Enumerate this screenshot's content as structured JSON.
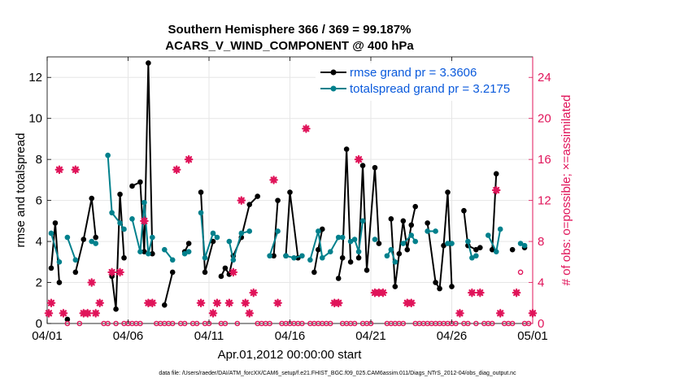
{
  "chart_data": {
    "type": "line",
    "title": [
      "Southern Hemisphere 366 / 369 = 99.187%",
      "ACARS_V_WIND_COMPONENT @ 400 hPa"
    ],
    "xlabel": "Apr.01,2012 00:00:00 start",
    "ylabel_left": "rmse and totalspread",
    "ylabel_right": "# of obs: o=possible; ×=assimilated",
    "footer": "data file: /Users/raeder/DAI/ATM_forcXX/CAM6_setup/f.e21.FHIST_BGC.f09_025.CAM6assim.011/Diags_NTrS_2012-04/obs_diag_output.nc",
    "xlim": [
      0,
      30
    ],
    "ylim_left": [
      0,
      13
    ],
    "ylim_right": [
      0,
      26
    ],
    "x_tick_values": [
      0,
      5,
      10,
      15,
      20,
      25,
      30
    ],
    "x_tick_labels": [
      "04/01",
      "04/06",
      "04/11",
      "04/16",
      "04/21",
      "04/26",
      "05/01"
    ],
    "y_left_ticks": [
      "0",
      "2",
      "4",
      "6",
      "8",
      "10",
      "12"
    ],
    "y_right_ticks": [
      "0",
      "4",
      "8",
      "12",
      "16",
      "20",
      "24"
    ],
    "colors": {
      "rmse": "#000000",
      "spread": "#00808c",
      "obs": "#e0145a",
      "legend_text": "#0a5adc",
      "grid": "#e6e6e6"
    },
    "series": [
      {
        "name": "rmse grand pr = 3.3606",
        "color": "#000000",
        "points": [
          [
            0.25,
            2.7
          ],
          [
            0.5,
            4.9
          ],
          [
            0.75,
            2.0
          ],
          [
            1.0,
            null
          ],
          [
            1.25,
            0.2
          ],
          [
            1.5,
            null
          ],
          [
            1.75,
            2.5
          ],
          [
            2.25,
            4.1
          ],
          [
            2.75,
            6.1
          ],
          [
            3.0,
            4.2
          ],
          [
            3.5,
            null
          ],
          [
            4.0,
            2.3
          ],
          [
            4.25,
            0.7
          ],
          [
            4.5,
            6.3
          ],
          [
            4.75,
            3.2
          ],
          [
            5.0,
            null
          ],
          [
            5.25,
            6.7
          ],
          [
            5.75,
            6.9
          ],
          [
            6.0,
            3.5
          ],
          [
            6.25,
            12.7
          ],
          [
            6.5,
            3.4
          ],
          [
            7.0,
            null
          ],
          [
            7.25,
            0.9
          ],
          [
            7.75,
            2.5
          ],
          [
            8.0,
            null
          ],
          [
            8.5,
            3.5
          ],
          [
            8.75,
            3.9
          ],
          [
            9.0,
            null
          ],
          [
            9.5,
            6.4
          ],
          [
            9.75,
            2.5
          ],
          [
            10.25,
            4.0
          ],
          [
            10.5,
            null
          ],
          [
            10.75,
            2.3
          ],
          [
            11.0,
            2.7
          ],
          [
            11.25,
            2.4
          ],
          [
            11.5,
            3.3
          ],
          [
            12.0,
            4.2
          ],
          [
            12.5,
            5.8
          ],
          [
            13.0,
            6.2
          ],
          [
            13.5,
            null
          ],
          [
            14.0,
            3.3
          ],
          [
            14.25,
            6.0
          ],
          [
            14.5,
            null
          ],
          [
            14.75,
            3.3
          ],
          [
            15.0,
            6.4
          ],
          [
            15.5,
            3.2
          ],
          [
            16.0,
            null
          ],
          [
            16.5,
            2.5
          ],
          [
            16.75,
            3.6
          ],
          [
            17.0,
            4.6
          ],
          [
            17.5,
            null
          ],
          [
            18.0,
            2.2
          ],
          [
            18.25,
            3.2
          ],
          [
            18.5,
            8.5
          ],
          [
            18.75,
            3.0
          ],
          [
            19.0,
            null
          ],
          [
            19.25,
            3.2
          ],
          [
            19.5,
            7.7
          ],
          [
            19.75,
            2.6
          ],
          [
            20.25,
            7.6
          ],
          [
            20.5,
            3.9
          ],
          [
            20.75,
            null
          ],
          [
            21.25,
            5.1
          ],
          [
            21.5,
            1.8
          ],
          [
            21.75,
            3.4
          ],
          [
            22.0,
            5.0
          ],
          [
            22.25,
            3.6
          ],
          [
            22.5,
            4.8
          ],
          [
            22.75,
            5.7
          ],
          [
            23.0,
            null
          ],
          [
            23.5,
            4.9
          ],
          [
            24.0,
            2.0
          ],
          [
            24.25,
            1.7
          ],
          [
            24.5,
            3.8
          ],
          [
            24.75,
            6.4
          ],
          [
            25.0,
            1.8
          ],
          [
            25.25,
            null
          ],
          [
            25.75,
            5.5
          ],
          [
            26.0,
            3.8
          ],
          [
            26.5,
            3.6
          ],
          [
            26.75,
            3.7
          ],
          [
            27.0,
            null
          ],
          [
            27.5,
            3.6
          ],
          [
            27.75,
            7.3
          ],
          [
            28.0,
            null
          ],
          [
            28.75,
            3.6
          ],
          [
            29.0,
            null
          ],
          [
            29.5,
            3.7
          ]
        ]
      },
      {
        "name": "totalspread grand pr = 3.2175",
        "color": "#00808c",
        "points": [
          [
            0.25,
            4.4
          ],
          [
            0.75,
            3.0
          ],
          [
            1.0,
            null
          ],
          [
            1.25,
            4.2
          ],
          [
            1.75,
            3.1
          ],
          [
            2.25,
            null
          ],
          [
            2.75,
            4.0
          ],
          [
            3.0,
            3.9
          ],
          [
            3.5,
            null
          ],
          [
            3.75,
            8.2
          ],
          [
            4.0,
            5.4
          ],
          [
            4.5,
            4.9
          ],
          [
            4.75,
            4.6
          ],
          [
            5.0,
            null
          ],
          [
            5.25,
            5.1
          ],
          [
            5.75,
            3.5
          ],
          [
            6.0,
            5.9
          ],
          [
            6.25,
            3.4
          ],
          [
            6.5,
            4.2
          ],
          [
            7.0,
            null
          ],
          [
            7.25,
            3.6
          ],
          [
            7.75,
            3.1
          ],
          [
            8.0,
            null
          ],
          [
            8.5,
            3.4
          ],
          [
            8.75,
            3.5
          ],
          [
            9.0,
            null
          ],
          [
            9.5,
            5.4
          ],
          [
            9.75,
            3.2
          ],
          [
            10.25,
            4.4
          ],
          [
            10.5,
            4.2
          ],
          [
            11.0,
            null
          ],
          [
            11.25,
            4.0
          ],
          [
            11.5,
            3.1
          ],
          [
            12.0,
            4.4
          ],
          [
            12.5,
            4.5
          ],
          [
            12.75,
            null
          ],
          [
            13.75,
            3.3
          ],
          [
            14.25,
            4.5
          ],
          [
            14.5,
            null
          ],
          [
            14.75,
            3.3
          ],
          [
            15.25,
            3.2
          ],
          [
            15.75,
            3.3
          ],
          [
            16.0,
            null
          ],
          [
            16.25,
            3.1
          ],
          [
            16.75,
            4.5
          ],
          [
            17.0,
            3.2
          ],
          [
            17.5,
            3.5
          ],
          [
            18.0,
            4.2
          ],
          [
            18.25,
            4.2
          ],
          [
            18.5,
            null
          ],
          [
            18.75,
            4.0
          ],
          [
            19.0,
            4.1
          ],
          [
            19.25,
            3.5
          ],
          [
            19.5,
            5.0
          ],
          [
            19.75,
            null
          ],
          [
            20.25,
            4.1
          ],
          [
            20.5,
            null
          ],
          [
            21.0,
            3.3
          ],
          [
            21.25,
            3.6
          ],
          [
            21.5,
            3.0
          ],
          [
            21.75,
            null
          ],
          [
            22.0,
            3.9
          ],
          [
            22.5,
            4.3
          ],
          [
            22.75,
            4.0
          ],
          [
            23.0,
            null
          ],
          [
            23.5,
            4.5
          ],
          [
            24.0,
            4.5
          ],
          [
            24.5,
            null
          ],
          [
            24.75,
            3.9
          ],
          [
            25.0,
            3.9
          ],
          [
            25.25,
            null
          ],
          [
            26.0,
            4.0
          ],
          [
            26.25,
            3.2
          ],
          [
            26.5,
            3.3
          ],
          [
            26.75,
            null
          ],
          [
            27.25,
            4.3
          ],
          [
            27.75,
            3.5
          ],
          [
            28.0,
            4.6
          ],
          [
            28.5,
            null
          ],
          [
            29.25,
            3.9
          ],
          [
            29.5,
            3.8
          ]
        ]
      }
    ],
    "obs_possible": [
      [
        0.1,
        1
      ],
      [
        0.25,
        2
      ],
      [
        0.75,
        15
      ],
      [
        1.0,
        1
      ],
      [
        1.25,
        0
      ],
      [
        1.75,
        15
      ],
      [
        2.0,
        0
      ],
      [
        2.25,
        1
      ],
      [
        2.5,
        1
      ],
      [
        2.75,
        4
      ],
      [
        3.0,
        1
      ],
      [
        3.25,
        2
      ],
      [
        3.5,
        0
      ],
      [
        3.75,
        0
      ],
      [
        4.0,
        5
      ],
      [
        4.25,
        0
      ],
      [
        4.5,
        5
      ],
      [
        4.75,
        0
      ],
      [
        5.0,
        0
      ],
      [
        5.25,
        0
      ],
      [
        5.5,
        0
      ],
      [
        5.75,
        0
      ],
      [
        6.0,
        10
      ],
      [
        6.25,
        2
      ],
      [
        6.5,
        2
      ],
      [
        6.75,
        0
      ],
      [
        7.0,
        0
      ],
      [
        7.25,
        0
      ],
      [
        7.5,
        0
      ],
      [
        7.75,
        0
      ],
      [
        8.0,
        15
      ],
      [
        8.25,
        0
      ],
      [
        8.5,
        0
      ],
      [
        8.75,
        16
      ],
      [
        9.0,
        0
      ],
      [
        9.25,
        0
      ],
      [
        9.5,
        2
      ],
      [
        9.75,
        0
      ],
      [
        10.0,
        0
      ],
      [
        10.25,
        1
      ],
      [
        10.5,
        2
      ],
      [
        10.75,
        0
      ],
      [
        11.0,
        0
      ],
      [
        11.25,
        2
      ],
      [
        11.5,
        5
      ],
      [
        11.75,
        0
      ],
      [
        12.0,
        12
      ],
      [
        12.25,
        2
      ],
      [
        12.5,
        1
      ],
      [
        12.75,
        3
      ],
      [
        13.0,
        0
      ],
      [
        13.25,
        0
      ],
      [
        13.5,
        0
      ],
      [
        13.75,
        0
      ],
      [
        14.0,
        14
      ],
      [
        14.25,
        2
      ],
      [
        14.5,
        0
      ],
      [
        14.75,
        0
      ],
      [
        15.0,
        0
      ],
      [
        15.25,
        0
      ],
      [
        15.5,
        0
      ],
      [
        15.75,
        0
      ],
      [
        16.0,
        19
      ],
      [
        16.25,
        0
      ],
      [
        16.5,
        0
      ],
      [
        16.75,
        0
      ],
      [
        17.0,
        0
      ],
      [
        17.25,
        0
      ],
      [
        17.5,
        0
      ],
      [
        17.75,
        2
      ],
      [
        18.0,
        2
      ],
      [
        18.25,
        0
      ],
      [
        18.5,
        0
      ],
      [
        18.75,
        0
      ],
      [
        19.0,
        0
      ],
      [
        19.25,
        16
      ],
      [
        19.5,
        0
      ],
      [
        19.75,
        0
      ],
      [
        20.0,
        0
      ],
      [
        20.25,
        3
      ],
      [
        20.5,
        3
      ],
      [
        20.75,
        3
      ],
      [
        21.0,
        0
      ],
      [
        21.25,
        0
      ],
      [
        21.5,
        0
      ],
      [
        21.75,
        0
      ],
      [
        22.0,
        0
      ],
      [
        22.25,
        2
      ],
      [
        22.5,
        2
      ],
      [
        22.75,
        0
      ],
      [
        23.0,
        0
      ],
      [
        23.25,
        0
      ],
      [
        23.5,
        0
      ],
      [
        23.75,
        0
      ],
      [
        24.0,
        0
      ],
      [
        24.25,
        0
      ],
      [
        24.5,
        0
      ],
      [
        24.75,
        0
      ],
      [
        25.0,
        0
      ],
      [
        25.25,
        0
      ],
      [
        25.5,
        1
      ],
      [
        25.75,
        0
      ],
      [
        26.0,
        0
      ],
      [
        26.25,
        3
      ],
      [
        26.5,
        0
      ],
      [
        26.75,
        3
      ],
      [
        27.0,
        0
      ],
      [
        27.25,
        0
      ],
      [
        27.5,
        0
      ],
      [
        27.75,
        13
      ],
      [
        28.0,
        1
      ],
      [
        28.25,
        0
      ],
      [
        28.5,
        0
      ],
      [
        28.75,
        0
      ],
      [
        29.0,
        3
      ],
      [
        29.25,
        5
      ],
      [
        29.5,
        0
      ],
      [
        29.75,
        0
      ],
      [
        30.0,
        1
      ]
    ],
    "obs_assimilated": [
      [
        0.1,
        1
      ],
      [
        0.25,
        2
      ],
      [
        0.75,
        15
      ],
      [
        1.0,
        1
      ],
      [
        1.75,
        15
      ],
      [
        2.25,
        1
      ],
      [
        2.5,
        1
      ],
      [
        2.75,
        4
      ],
      [
        3.0,
        1
      ],
      [
        3.25,
        2
      ],
      [
        4.0,
        5
      ],
      [
        4.5,
        5
      ],
      [
        6.0,
        10
      ],
      [
        6.25,
        2
      ],
      [
        6.5,
        2
      ],
      [
        8.0,
        15
      ],
      [
        8.75,
        16
      ],
      [
        9.5,
        2
      ],
      [
        10.25,
        1
      ],
      [
        10.5,
        2
      ],
      [
        11.25,
        2
      ],
      [
        11.5,
        5
      ],
      [
        12.0,
        12
      ],
      [
        12.25,
        2
      ],
      [
        12.5,
        1
      ],
      [
        12.75,
        3
      ],
      [
        14.0,
        14
      ],
      [
        14.25,
        2
      ],
      [
        16.0,
        19
      ],
      [
        17.75,
        2
      ],
      [
        18.0,
        2
      ],
      [
        19.25,
        16
      ],
      [
        20.25,
        3
      ],
      [
        20.5,
        3
      ],
      [
        20.75,
        3
      ],
      [
        22.25,
        2
      ],
      [
        22.5,
        2
      ],
      [
        25.5,
        1
      ],
      [
        26.25,
        3
      ],
      [
        26.75,
        3
      ],
      [
        27.75,
        13
      ],
      [
        28.0,
        1
      ],
      [
        29.0,
        3
      ],
      [
        30.0,
        1
      ]
    ]
  }
}
